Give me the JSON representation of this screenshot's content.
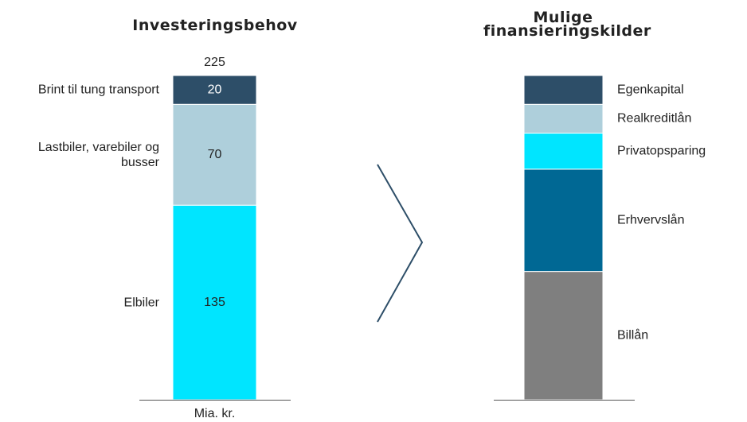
{
  "chart_data": [
    {
      "type": "bar",
      "title": "Investeringsbehov",
      "total": 225,
      "x_label": "Mia. kr.",
      "series": [
        {
          "name": "Elbiler",
          "color": "#00e5ff",
          "values": [
            135
          ]
        },
        {
          "name": "Lastbiler, varebiler og busser",
          "color": "#aecfdb",
          "values": [
            70
          ]
        },
        {
          "name": "Brint til tung transport",
          "color": "#2d4e68",
          "values": [
            20
          ]
        }
      ]
    },
    {
      "type": "bar",
      "title": "Mulige finansieringskilder",
      "series": [
        {
          "name": "Billån",
          "color": "#7f7f7f",
          "values": [
            89
          ]
        },
        {
          "name": "Erhvervslån",
          "color": "#006894",
          "values": [
            71
          ]
        },
        {
          "name": "Privatopsparing",
          "color": "#00e5ff",
          "values": [
            25
          ]
        },
        {
          "name": "Realkreditlån",
          "color": "#aecfdb",
          "values": [
            20
          ]
        },
        {
          "name": "Egenkapital",
          "color": "#2d4e68",
          "values": [
            20
          ]
        }
      ]
    }
  ]
}
